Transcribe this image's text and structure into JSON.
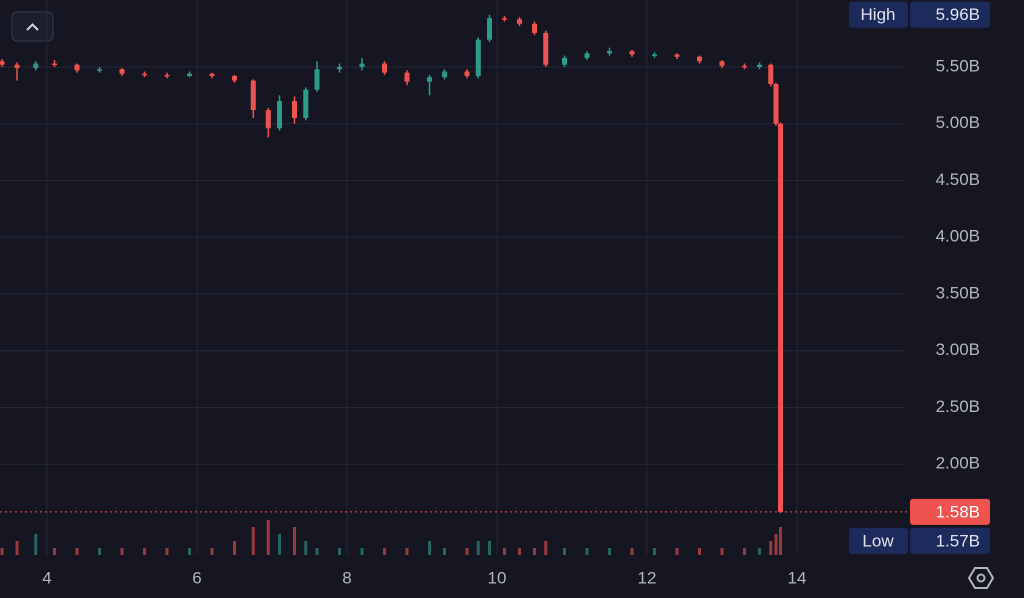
{
  "chart_data": {
    "type": "candlestick",
    "x": [
      3.4,
      3.6,
      3.85,
      4.1,
      4.4,
      4.7,
      5.0,
      5.3,
      5.6,
      5.9,
      6.2,
      6.5,
      6.75,
      6.95,
      7.1,
      7.3,
      7.45,
      7.6,
      7.9,
      8.2,
      8.5,
      8.8,
      9.1,
      9.3,
      9.6,
      9.75,
      9.9,
      10.1,
      10.3,
      10.5,
      10.65,
      10.9,
      11.2,
      11.5,
      11.8,
      12.1,
      12.4,
      12.7,
      13.0,
      13.3,
      13.5,
      13.65,
      13.72,
      13.78
    ],
    "open": [
      5.55,
      5.52,
      5.49,
      5.53,
      5.52,
      5.47,
      5.48,
      5.44,
      5.43,
      5.42,
      5.44,
      5.42,
      5.38,
      5.12,
      4.96,
      5.2,
      5.05,
      5.3,
      5.48,
      5.5,
      5.53,
      5.45,
      5.37,
      5.41,
      5.46,
      5.42,
      5.74,
      5.93,
      5.92,
      5.88,
      5.8,
      5.52,
      5.58,
      5.62,
      5.64,
      5.61,
      5.61,
      5.59,
      5.55,
      5.51,
      5.5,
      5.52,
      5.35,
      5.0
    ],
    "high": [
      5.57,
      5.54,
      5.55,
      5.56,
      5.53,
      5.5,
      5.49,
      5.46,
      5.45,
      5.46,
      5.45,
      5.43,
      5.39,
      5.14,
      5.25,
      5.24,
      5.32,
      5.55,
      5.53,
      5.58,
      5.55,
      5.47,
      5.43,
      5.48,
      5.48,
      5.76,
      5.96,
      5.95,
      5.94,
      5.9,
      5.82,
      5.6,
      5.64,
      5.67,
      5.65,
      5.63,
      5.62,
      5.6,
      5.56,
      5.53,
      5.54,
      5.53,
      5.36,
      5.01
    ],
    "low": [
      5.5,
      5.38,
      5.47,
      5.5,
      5.45,
      5.45,
      5.42,
      5.41,
      5.4,
      5.41,
      5.4,
      5.36,
      5.05,
      4.88,
      4.94,
      5.0,
      5.03,
      5.28,
      5.45,
      5.47,
      5.43,
      5.34,
      5.25,
      5.39,
      5.4,
      5.4,
      5.72,
      5.9,
      5.86,
      5.78,
      5.5,
      5.5,
      5.56,
      5.6,
      5.59,
      5.58,
      5.57,
      5.53,
      5.49,
      5.48,
      5.48,
      5.33,
      4.98,
      1.57
    ],
    "close": [
      5.52,
      5.49,
      5.53,
      5.52,
      5.47,
      5.48,
      5.44,
      5.43,
      5.42,
      5.44,
      5.42,
      5.38,
      5.12,
      4.96,
      5.2,
      5.05,
      5.3,
      5.48,
      5.5,
      5.53,
      5.45,
      5.37,
      5.41,
      5.46,
      5.42,
      5.74,
      5.93,
      5.92,
      5.88,
      5.8,
      5.52,
      5.58,
      5.62,
      5.64,
      5.61,
      5.61,
      5.59,
      5.55,
      5.51,
      5.5,
      5.52,
      5.35,
      5.0,
      1.58
    ],
    "volume": [
      1,
      2,
      3,
      1,
      1,
      1,
      1,
      1,
      1,
      1,
      1,
      2,
      4,
      5,
      3,
      4,
      2,
      1,
      1,
      1,
      1,
      1,
      2,
      1,
      1,
      2,
      2,
      1,
      1,
      1,
      2,
      1,
      1,
      1,
      1,
      1,
      1,
      1,
      1,
      1,
      1,
      2,
      3,
      4
    ],
    "up_color": "#2b9c85",
    "down_color": "#ef5350",
    "xlim": [
      3.373,
      15.44
    ],
    "xticks": [
      4,
      6,
      8,
      10,
      12,
      14
    ],
    "ylim": [
      1.2,
      6.09
    ],
    "yticks": [
      {
        "value": 2.0,
        "label": "2.00B"
      },
      {
        "value": 2.5,
        "label": "2.50B"
      },
      {
        "value": 3.0,
        "label": "3.00B"
      },
      {
        "value": 3.5,
        "label": "3.50B"
      },
      {
        "value": 4.0,
        "label": "4.00B"
      },
      {
        "value": 4.5,
        "label": "4.50B"
      },
      {
        "value": 5.0,
        "label": "5.00B"
      },
      {
        "value": 5.5,
        "label": "5.50B"
      }
    ],
    "grid": true,
    "high_marker": {
      "label": "High",
      "value": 5.96,
      "value_label": "5.96B"
    },
    "low_marker": {
      "label": "Low",
      "value": 1.57,
      "value_label": "1.57B"
    },
    "last_price": {
      "value": 1.58,
      "value_label": "1.58B"
    }
  }
}
